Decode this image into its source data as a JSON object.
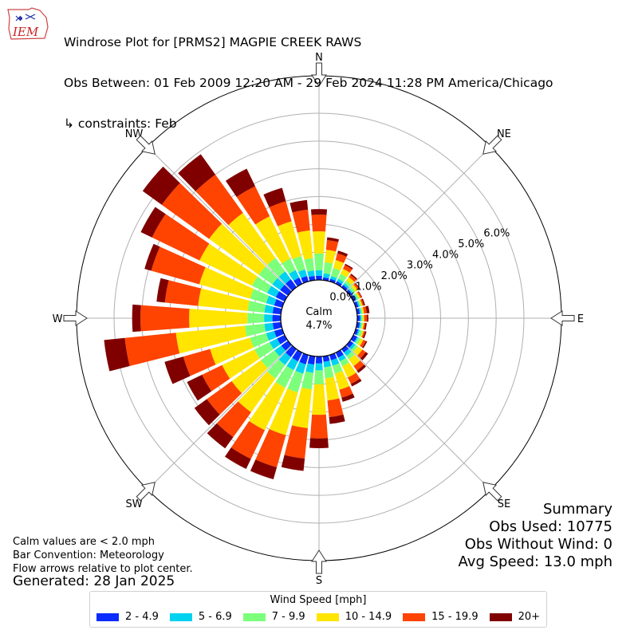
{
  "header": {
    "logo_text": "IEM",
    "title": "Windrose Plot for [PRMS2] MAGPIE CREEK RAWS",
    "subtitle": "Obs Between: 01 Feb 2009 12:20 AM - 29 Feb 2024 11:28 PM America/Chicago",
    "constraints": "↳ constraints: Feb"
  },
  "summary": {
    "heading": "Summary",
    "obs_used": "Obs Used: 10775",
    "obs_without_wind": "Obs Without Wind: 0",
    "avg_speed": "Avg Speed: 13.0 mph"
  },
  "notes": {
    "calm_note": "Calm values are < 2.0 mph",
    "bar_convention": "Bar Convention: Meteorology",
    "flow_note": "Flow arrows relative to plot center.",
    "generated": "Generated: 28 Jan 2025"
  },
  "chart_data": {
    "type": "windrose",
    "calm_label": "Calm",
    "calm_value": "4.7%",
    "calm_percent": 4.7,
    "radial_ticks": [
      0,
      1,
      2,
      3,
      4,
      5,
      6
    ],
    "radial_tick_labels": [
      "0.0%",
      "1.0%",
      "2.0%",
      "3.0%",
      "4.0%",
      "5.0%",
      "6.0%"
    ],
    "radial_max": 7.35,
    "compass_labels": [
      "N",
      "NE",
      "E",
      "SE",
      "S",
      "SW",
      "W",
      "NW"
    ],
    "legend_title": "Wind Speed [mph]",
    "bins": [
      {
        "label": "2 - 4.9",
        "color": "#0a2cff"
      },
      {
        "label": "5 - 6.9",
        "color": "#00d2f0"
      },
      {
        "label": "7 - 9.9",
        "color": "#7cff7a"
      },
      {
        "label": "10 - 14.9",
        "color": "#ffe500"
      },
      {
        "label": "15 - 19.9",
        "color": "#ff4300"
      },
      {
        "label": "20+",
        "color": "#800000"
      }
    ],
    "directions": [
      0,
      10,
      20,
      30,
      40,
      50,
      60,
      70,
      80,
      90,
      100,
      110,
      120,
      130,
      140,
      150,
      160,
      170,
      180,
      190,
      200,
      210,
      220,
      230,
      240,
      250,
      260,
      270,
      280,
      290,
      300,
      310,
      320,
      330,
      340,
      350
    ],
    "cumulative": [
      [
        0.15,
        0.35,
        0.95,
        1.75,
        2.35,
        2.55
      ],
      [
        0.1,
        0.25,
        0.65,
        1.1,
        1.45,
        1.55
      ],
      [
        0.1,
        0.2,
        0.5,
        0.8,
        1.05,
        1.15
      ],
      [
        0.1,
        0.2,
        0.4,
        0.6,
        0.75,
        0.8
      ],
      [
        0.1,
        0.18,
        0.3,
        0.45,
        0.55,
        0.6
      ],
      [
        0.1,
        0.15,
        0.25,
        0.35,
        0.42,
        0.45
      ],
      [
        0.1,
        0.15,
        0.22,
        0.28,
        0.33,
        0.35
      ],
      [
        0.1,
        0.15,
        0.2,
        0.25,
        0.3,
        0.35
      ],
      [
        0.1,
        0.15,
        0.2,
        0.25,
        0.35,
        0.45
      ],
      [
        0.1,
        0.15,
        0.2,
        0.25,
        0.35,
        0.4
      ],
      [
        0.1,
        0.15,
        0.2,
        0.25,
        0.3,
        0.35
      ],
      [
        0.1,
        0.15,
        0.25,
        0.3,
        0.35,
        0.4
      ],
      [
        0.15,
        0.2,
        0.3,
        0.4,
        0.5,
        0.55
      ],
      [
        0.15,
        0.25,
        0.35,
        0.55,
        0.7,
        0.8
      ],
      [
        0.15,
        0.3,
        0.45,
        0.75,
        0.95,
        1.05
      ],
      [
        0.2,
        0.35,
        0.55,
        1.0,
        1.25,
        1.35
      ],
      [
        0.2,
        0.4,
        0.7,
        1.3,
        1.6,
        1.75
      ],
      [
        0.2,
        0.4,
        0.8,
        1.6,
        2.2,
        2.45
      ],
      [
        0.25,
        0.5,
        1.0,
        2.1,
        2.95,
        3.3
      ],
      [
        0.3,
        0.6,
        1.2,
        2.6,
        3.7,
        4.15
      ],
      [
        0.35,
        0.7,
        1.4,
        3.0,
        4.2,
        4.65
      ],
      [
        0.35,
        0.7,
        1.4,
        3.1,
        4.25,
        4.65
      ],
      [
        0.35,
        0.7,
        1.3,
        2.8,
        3.9,
        4.4
      ],
      [
        0.3,
        0.6,
        1.2,
        2.5,
        3.6,
        4.15
      ],
      [
        0.3,
        0.6,
        1.2,
        2.5,
        3.3,
        3.9
      ],
      [
        0.3,
        0.6,
        1.2,
        2.7,
        3.7,
        4.4
      ],
      [
        0.3,
        0.6,
        1.3,
        3.8,
        5.65,
        6.4
      ],
      [
        0.3,
        0.6,
        1.2,
        3.3,
        5.05,
        5.35
      ],
      [
        0.3,
        0.6,
        1.2,
        3.0,
        4.2,
        4.5
      ],
      [
        0.3,
        0.6,
        1.2,
        3.1,
        4.9,
        5.15
      ],
      [
        0.35,
        0.7,
        1.3,
        3.4,
        5.3,
        5.75
      ],
      [
        0.35,
        0.7,
        1.3,
        3.5,
        5.6,
        6.45
      ],
      [
        0.35,
        0.7,
        1.3,
        3.3,
        5.0,
        5.9
      ],
      [
        0.25,
        0.55,
        1.0,
        2.7,
        3.9,
        4.6
      ],
      [
        0.2,
        0.45,
        0.95,
        2.25,
        3.0,
        3.5
      ],
      [
        0.15,
        0.35,
        0.8,
        1.8,
        2.55,
        2.9
      ]
    ]
  }
}
